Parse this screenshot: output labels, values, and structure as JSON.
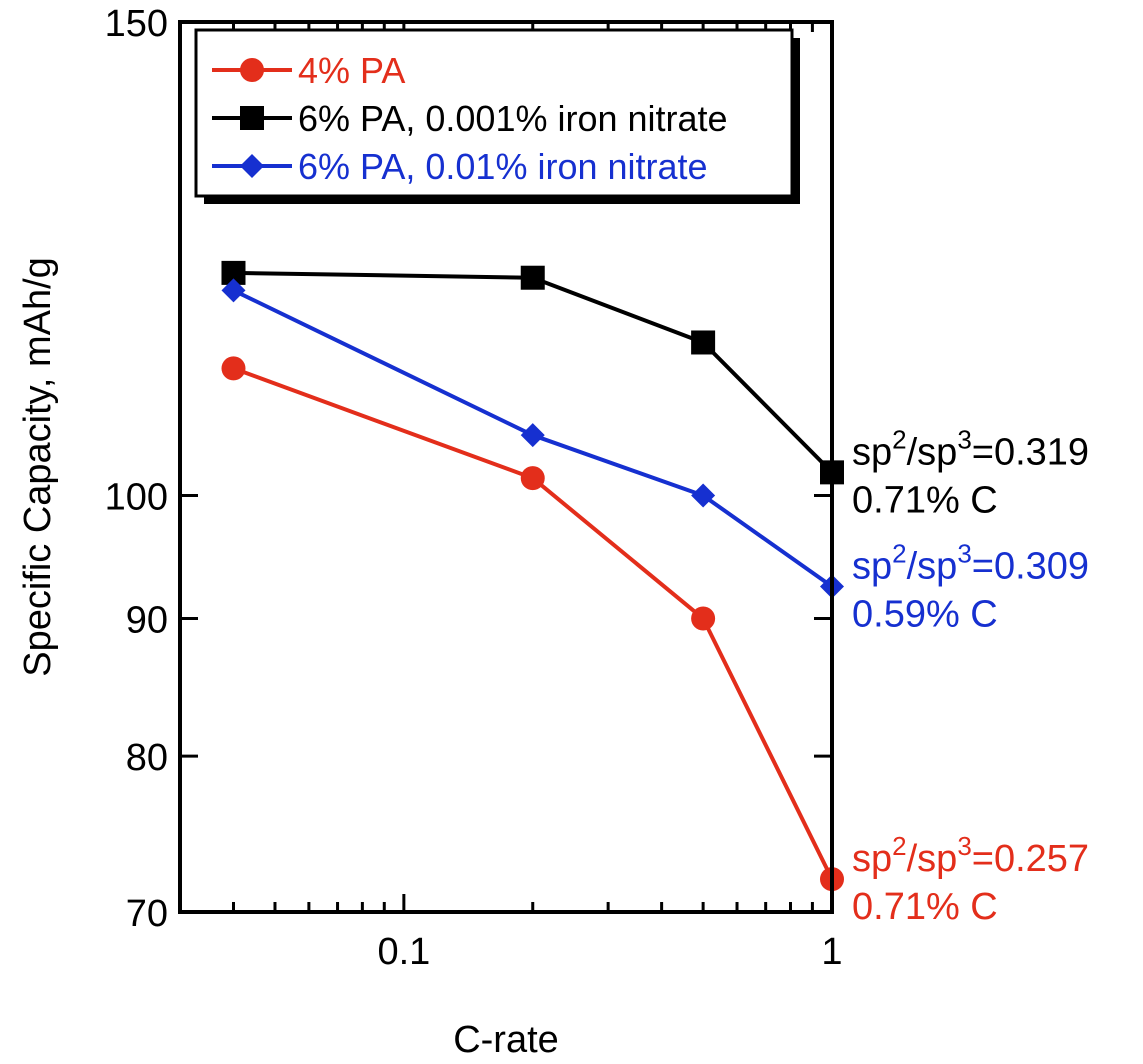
{
  "chart_data": {
    "type": "line",
    "xlabel": "C-rate",
    "ylabel": "Specific Capacity, mAh/g",
    "x_scale": "log",
    "y_scale": "log",
    "xlim": [
      0.03,
      1
    ],
    "ylim": [
      70,
      150
    ],
    "x_ticks": [
      {
        "value": 0.1,
        "label": "0.1"
      },
      {
        "value": 1,
        "label": "1"
      }
    ],
    "y_ticks": [
      {
        "value": 70,
        "label": "70"
      },
      {
        "value": 80,
        "label": "80"
      },
      {
        "value": 90,
        "label": "90"
      },
      {
        "value": 100,
        "label": "100"
      },
      {
        "value": 150,
        "label": "150"
      }
    ],
    "legend_position": "top-left",
    "series": [
      {
        "name": "4% PA",
        "color": "#e32e1b",
        "marker": "circle",
        "x": [
          0.04,
          0.2,
          0.5,
          1
        ],
        "y": [
          111.5,
          101.5,
          90,
          72
        ]
      },
      {
        "name": "6% PA, 0.001% iron nitrate",
        "color": "#000000",
        "marker": "square",
        "x": [
          0.04,
          0.2,
          0.5,
          1
        ],
        "y": [
          121,
          120.5,
          114,
          102
        ]
      },
      {
        "name": "6% PA, 0.01% iron nitrate",
        "color": "#1630d0",
        "marker": "diamond",
        "x": [
          0.04,
          0.2,
          0.5,
          1
        ],
        "y": [
          119.2,
          105.3,
          100,
          92.5
        ]
      }
    ],
    "annotations": [
      {
        "series": 1,
        "ratio": "0.319",
        "carbon": "0.71% C"
      },
      {
        "series": 2,
        "ratio": "0.309",
        "carbon": "0.59% C"
      },
      {
        "series": 0,
        "ratio": "0.257",
        "carbon": "0.71% C"
      }
    ]
  }
}
